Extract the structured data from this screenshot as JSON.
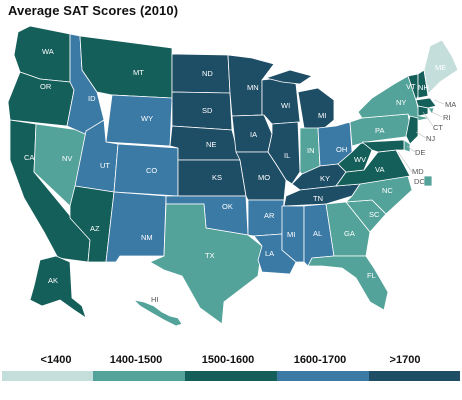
{
  "title": "Average SAT Scores (2010)",
  "colors": {
    "lt1400": "#c3dedb",
    "1400-1500": "#54a39a",
    "1500-1600": "#155f5b",
    "1600-1700": "#3c7aa6",
    "gt1700": "#1e4d66"
  },
  "legend": [
    {
      "label": "<1400",
      "key": "lt1400"
    },
    {
      "label": "1400-1500",
      "key": "1400-1500"
    },
    {
      "label": "1500-1600",
      "key": "1500-1600"
    },
    {
      "label": "1600-1700",
      "key": "1600-1700"
    },
    {
      "label": ">1700",
      "key": "gt1700"
    }
  ],
  "states": [
    {
      "abbr": "WA",
      "bin": "1500-1600"
    },
    {
      "abbr": "OR",
      "bin": "1500-1600"
    },
    {
      "abbr": "CA",
      "bin": "1500-1600"
    },
    {
      "abbr": "NV",
      "bin": "1400-1500"
    },
    {
      "abbr": "ID",
      "bin": "1600-1700"
    },
    {
      "abbr": "MT",
      "bin": "1500-1600"
    },
    {
      "abbr": "WY",
      "bin": "1600-1700"
    },
    {
      "abbr": "UT",
      "bin": "1600-1700"
    },
    {
      "abbr": "AZ",
      "bin": "1500-1600"
    },
    {
      "abbr": "CO",
      "bin": "1600-1700"
    },
    {
      "abbr": "NM",
      "bin": "1600-1700"
    },
    {
      "abbr": "ND",
      "bin": "gt1700"
    },
    {
      "abbr": "SD",
      "bin": "gt1700"
    },
    {
      "abbr": "NE",
      "bin": "gt1700"
    },
    {
      "abbr": "KS",
      "bin": "gt1700"
    },
    {
      "abbr": "OK",
      "bin": "1600-1700"
    },
    {
      "abbr": "TX",
      "bin": "1400-1500"
    },
    {
      "abbr": "MN",
      "bin": "gt1700"
    },
    {
      "abbr": "IA",
      "bin": "gt1700"
    },
    {
      "abbr": "MO",
      "bin": "gt1700"
    },
    {
      "abbr": "AR",
      "bin": "1600-1700"
    },
    {
      "abbr": "LA",
      "bin": "1600-1700"
    },
    {
      "abbr": "WI",
      "bin": "gt1700"
    },
    {
      "abbr": "IL",
      "bin": "gt1700"
    },
    {
      "abbr": "MI",
      "bin": "gt1700"
    },
    {
      "abbr": "IN",
      "bin": "1400-1500"
    },
    {
      "abbr": "OH",
      "bin": "1600-1700"
    },
    {
      "abbr": "KY",
      "bin": "gt1700"
    },
    {
      "abbr": "TN",
      "bin": "gt1700"
    },
    {
      "abbr": "MS",
      "bin": "1600-1700"
    },
    {
      "abbr": "AL",
      "bin": "1600-1700"
    },
    {
      "abbr": "GA",
      "bin": "1400-1500"
    },
    {
      "abbr": "FL",
      "bin": "1400-1500"
    },
    {
      "abbr": "SC",
      "bin": "1400-1500"
    },
    {
      "abbr": "NC",
      "bin": "1400-1500"
    },
    {
      "abbr": "VA",
      "bin": "1500-1600"
    },
    {
      "abbr": "WV",
      "bin": "1500-1600"
    },
    {
      "abbr": "PA",
      "bin": "1400-1500"
    },
    {
      "abbr": "NY",
      "bin": "1400-1500"
    },
    {
      "abbr": "VT",
      "bin": "1500-1600"
    },
    {
      "abbr": "NH",
      "bin": "1500-1600"
    },
    {
      "abbr": "ME",
      "bin": "lt1400"
    },
    {
      "abbr": "MA",
      "bin": "1500-1600"
    },
    {
      "abbr": "RI",
      "bin": "1400-1500"
    },
    {
      "abbr": "CT",
      "bin": "1500-1600"
    },
    {
      "abbr": "NJ",
      "bin": "1500-1600"
    },
    {
      "abbr": "DE",
      "bin": "1400-1500"
    },
    {
      "abbr": "MD",
      "bin": "1500-1600"
    },
    {
      "abbr": "DC",
      "bin": "1400-1500"
    },
    {
      "abbr": "AK",
      "bin": "1500-1600"
    },
    {
      "abbr": "HI",
      "bin": "1400-1500"
    }
  ]
}
